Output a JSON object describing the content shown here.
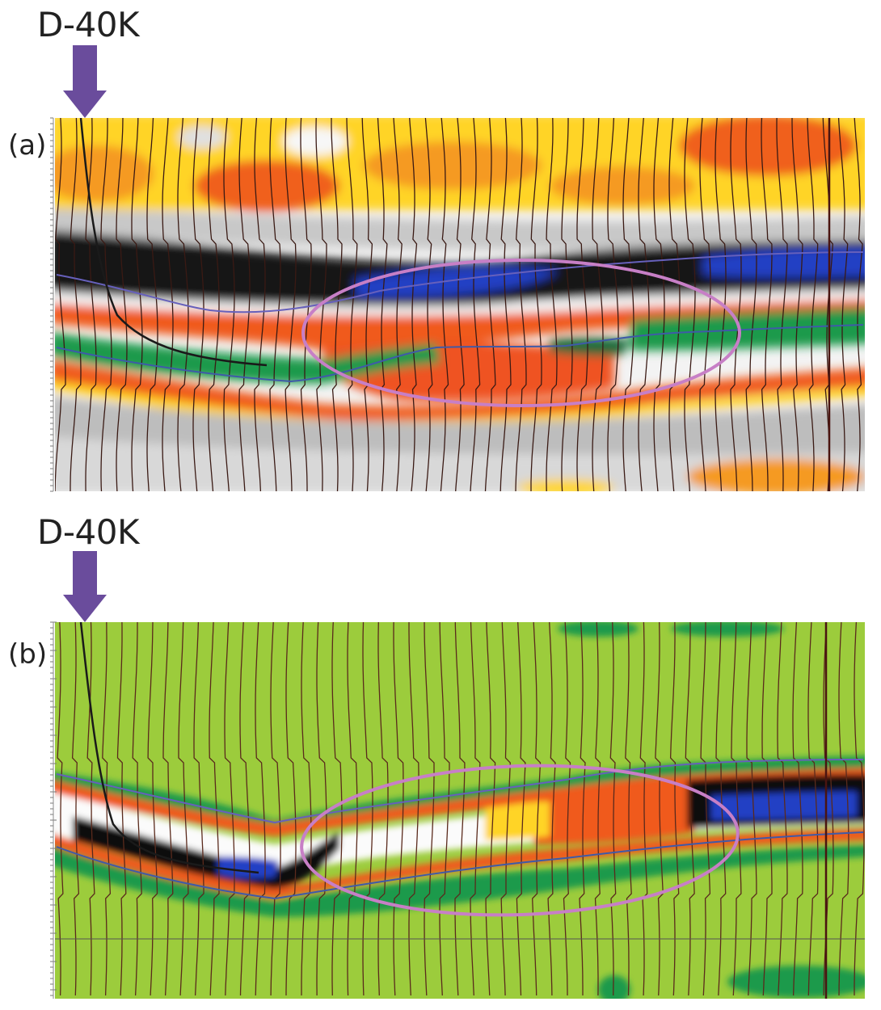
{
  "panels": [
    {
      "panel_label": "(a)",
      "well_label": "D-40K",
      "display": "seismic amplitude section with wiggle traces"
    },
    {
      "panel_label": "(b)",
      "well_label": "D-40K",
      "display": "attribute section with wiggle traces"
    }
  ],
  "colors": {
    "arrow": "#6a4c9c",
    "ellipse": "#c97fc6",
    "peak_orange": "#f05a1c",
    "peak_yellow": "#ffd21f",
    "trough_black": "#111111",
    "trough_blue": "#1f3fc0",
    "green_band": "#1f9a4b",
    "background_b": "#9ccc3c",
    "trace": "#3a1a14",
    "horizon": "#5a56b0"
  },
  "icons": [
    "down-arrow-icon",
    "ellipse-highlight"
  ]
}
